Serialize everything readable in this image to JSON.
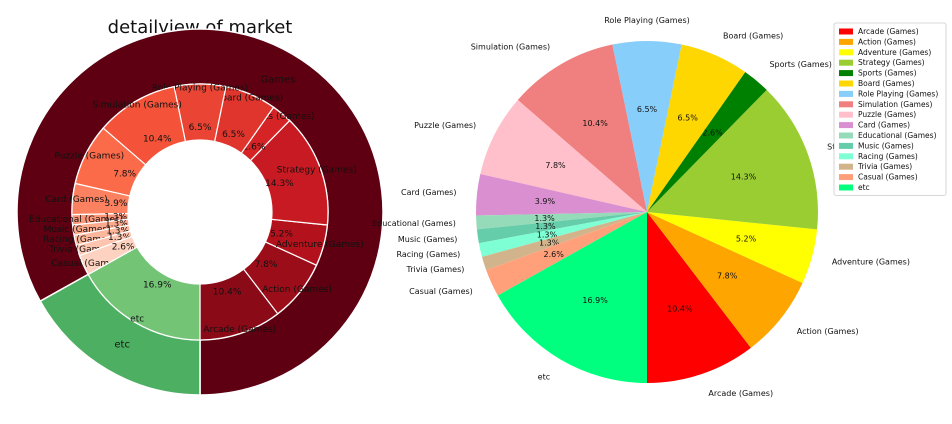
{
  "chart_data": [
    {
      "type": "pie",
      "variant": "nested-donut",
      "title": "detailview of market",
      "outer_ring": {
        "categories": [
          "Games",
          "etc"
        ],
        "values": [
          83.1,
          16.9
        ],
        "colors": [
          "#5e0011",
          "#4daf62"
        ]
      },
      "inner_ring": {
        "categories": [
          "Arcade (Games)",
          "Action (Games)",
          "Adventure (Games)",
          "Strategy (Games)",
          "Sports (Games)",
          "Board (Games)",
          "Role Playing (Games)",
          "Simulation (Games)",
          "Puzzle (Games)",
          "Card (Games)",
          "Educational (Games)",
          "Music (Games)",
          "Racing (Games)",
          "Trivia (Games)",
          "Casual (Games)",
          "etc"
        ],
        "values": [
          10.4,
          7.8,
          5.2,
          14.3,
          2.6,
          6.5,
          6.5,
          10.4,
          7.8,
          3.9,
          1.3,
          1.3,
          1.3,
          1.3,
          2.6,
          16.9
        ],
        "pct_labels": [
          "10.4%",
          "7.8%",
          "5.2%",
          "14.3%",
          "2.6%",
          "6.5%",
          "6.5%",
          "10.4%",
          "7.8%",
          "3.9%",
          "1.3%",
          "1.3%",
          "1.3%",
          "1.3%",
          "2.6%",
          "16.9%"
        ],
        "colors": [
          "#8b0a18",
          "#9c0d1a",
          "#b3121d",
          "#c81a22",
          "#d52326",
          "#e0352d",
          "#ea4534",
          "#f45339",
          "#fb6b4a",
          "#fc8160",
          "#fd9779",
          "#fca98c",
          "#fcb79d",
          "#fdc5af",
          "#fed2c0",
          "#74c476"
        ]
      }
    },
    {
      "type": "pie",
      "categories": [
        "Arcade (Games)",
        "Action (Games)",
        "Adventure (Games)",
        "Strategy (Games)",
        "Sports (Games)",
        "Board (Games)",
        "Role Playing (Games)",
        "Simulation (Games)",
        "Puzzle (Games)",
        "Card (Games)",
        "Educational (Games)",
        "Music (Games)",
        "Racing (Games)",
        "Trivia (Games)",
        "Casual (Games)",
        "etc"
      ],
      "values": [
        10.4,
        7.8,
        5.2,
        14.3,
        2.6,
        6.5,
        6.5,
        10.4,
        7.8,
        3.9,
        1.3,
        1.3,
        1.3,
        1.3,
        2.6,
        16.9
      ],
      "pct_labels": [
        "10.4%",
        "7.8%",
        "5.2%",
        "14.3%",
        "2.6%",
        "6.5%",
        "6.5%",
        "10.4%",
        "7.8%",
        "3.9%",
        "1.3%",
        "1.3%",
        "1.3%",
        "1.3%",
        "2.6%",
        "16.9%"
      ],
      "colors": [
        "#ff0000",
        "#ffa500",
        "#ffff00",
        "#9acd32",
        "#008000",
        "#ffd700",
        "#87cefa",
        "#f08080",
        "#ffc0cb",
        "#da90d0",
        "#95dbb9",
        "#66cdaa",
        "#7fffd4",
        "#d2b48c",
        "#ffa07a",
        "#00ff7f"
      ],
      "legend": {
        "position": "top-right",
        "entries": [
          "Arcade (Games)",
          "Action (Games)",
          "Adventure (Games)",
          "Strategy (Games)",
          "Sports (Games)",
          "Board (Games)",
          "Role Playing (Games)",
          "Simulation (Games)",
          "Puzzle (Games)",
          "Card (Games)",
          "Educational (Games)",
          "Music (Games)",
          "Racing (Games)",
          "Trivia (Games)",
          "Casual (Games)",
          "etc"
        ]
      }
    }
  ]
}
